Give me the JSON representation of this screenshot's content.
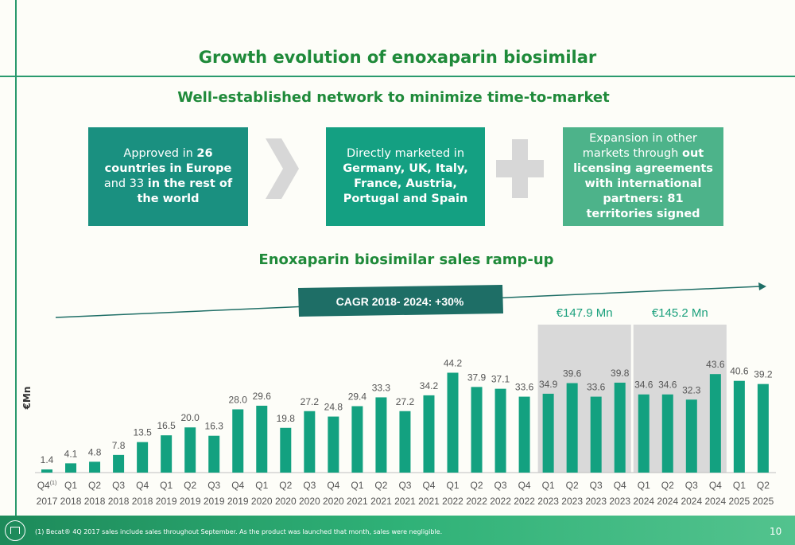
{
  "header": {
    "title": "Growth evolution of enoxaparin biosimilar",
    "subtitle": "Well-established network to minimize time-to-market"
  },
  "boxes": {
    "box1": {
      "t1": "Approved in ",
      "b1": "26 countries in Europe",
      "t2": " and 33 ",
      "b2": "in the rest of the world"
    },
    "box2": {
      "t1": "Directly marketed in ",
      "b1": "Germany, UK,  Italy, France, Austria, Portugal and Spain"
    },
    "box3": {
      "t1": "Expansion in other markets through ",
      "b1": "out licensing agreements with international partners: 81 territories signed"
    }
  },
  "section_title": "Enoxaparin biosimilar sales ramp-up",
  "cagr_label": "CAGR 2018- 2024: +30%",
  "footer": {
    "footnote": "(1) Becat® 4Q 2017 sales include sales throughout September. As the product was launched that month, sales were negligible.",
    "page": "10"
  },
  "colors": {
    "bar": "#13a180",
    "highlight": "#d9d9d9",
    "accent": "#1f8a3a",
    "label": "#555555",
    "cagr_box": "#1e6e66"
  },
  "chart_data": {
    "type": "bar",
    "ylabel": "€Mn",
    "ylim": [
      0,
      48
    ],
    "categories": [
      "Q4 2017",
      "Q1 2018",
      "Q2 2018",
      "Q3 2018",
      "Q4 2018",
      "Q1 2019",
      "Q2 2019",
      "Q3 2019",
      "Q4 2019",
      "Q1 2020",
      "Q2 2020",
      "Q3 2020",
      "Q4 2020",
      "Q1 2021",
      "Q2 2021",
      "Q3 2021",
      "Q4 2021",
      "Q1 2022",
      "Q2 2022",
      "Q3 2022",
      "Q4 2022",
      "Q1 2023",
      "Q2 2023",
      "Q3 2023",
      "Q4 2023",
      "Q1 2024",
      "Q2 2024",
      "Q3 2024",
      "Q4 2024",
      "Q1 2025",
      "Q2 2025"
    ],
    "quarters": [
      "Q4",
      "Q1",
      "Q2",
      "Q3",
      "Q4",
      "Q1",
      "Q2",
      "Q3",
      "Q4",
      "Q1",
      "Q2",
      "Q3",
      "Q4",
      "Q1",
      "Q2",
      "Q3",
      "Q4",
      "Q1",
      "Q2",
      "Q3",
      "Q4",
      "Q1",
      "Q2",
      "Q3",
      "Q4",
      "Q1",
      "Q2",
      "Q3",
      "Q4",
      "Q1",
      "Q2"
    ],
    "years": [
      "2017",
      "2018",
      "2018",
      "2018",
      "2018",
      "2019",
      "2019",
      "2019",
      "2019",
      "2020",
      "2020",
      "2020",
      "2020",
      "2021",
      "2021",
      "2021",
      "2021",
      "2022",
      "2022",
      "2022",
      "2022",
      "2023",
      "2023",
      "2023",
      "2023",
      "2024",
      "2024",
      "2024",
      "2024",
      "2025",
      "2025"
    ],
    "first_footnote_mark": "(1)",
    "values": [
      1.4,
      4.1,
      4.8,
      7.8,
      13.5,
      16.5,
      20.0,
      16.3,
      28.0,
      29.6,
      19.8,
      27.2,
      24.8,
      29.4,
      33.3,
      27.2,
      34.2,
      44.2,
      37.9,
      37.1,
      33.6,
      34.9,
      39.6,
      33.6,
      39.8,
      34.6,
      34.6,
      32.3,
      43.6,
      40.6,
      39.2
    ],
    "value_labels": [
      "1.4",
      "4.1",
      "4.8",
      "7.8",
      "13.5",
      "16.5",
      "20.0",
      "16.3",
      "28.0",
      "29.6",
      "19.8",
      "27.2",
      "24.8",
      "29.4",
      "33.3",
      "27.2",
      "34.2",
      "44.2",
      "37.9",
      "37.1",
      "33.6",
      "34.9",
      "39.6",
      "33.6",
      "39.8",
      "34.6",
      "34.6",
      "32.3",
      "43.6",
      "40.6",
      "39.2"
    ],
    "annotations": [
      {
        "label": "€147.9 Mn",
        "start": 21,
        "end": 24
      },
      {
        "label": "€145.2 Mn",
        "start": 25,
        "end": 28
      }
    ]
  }
}
